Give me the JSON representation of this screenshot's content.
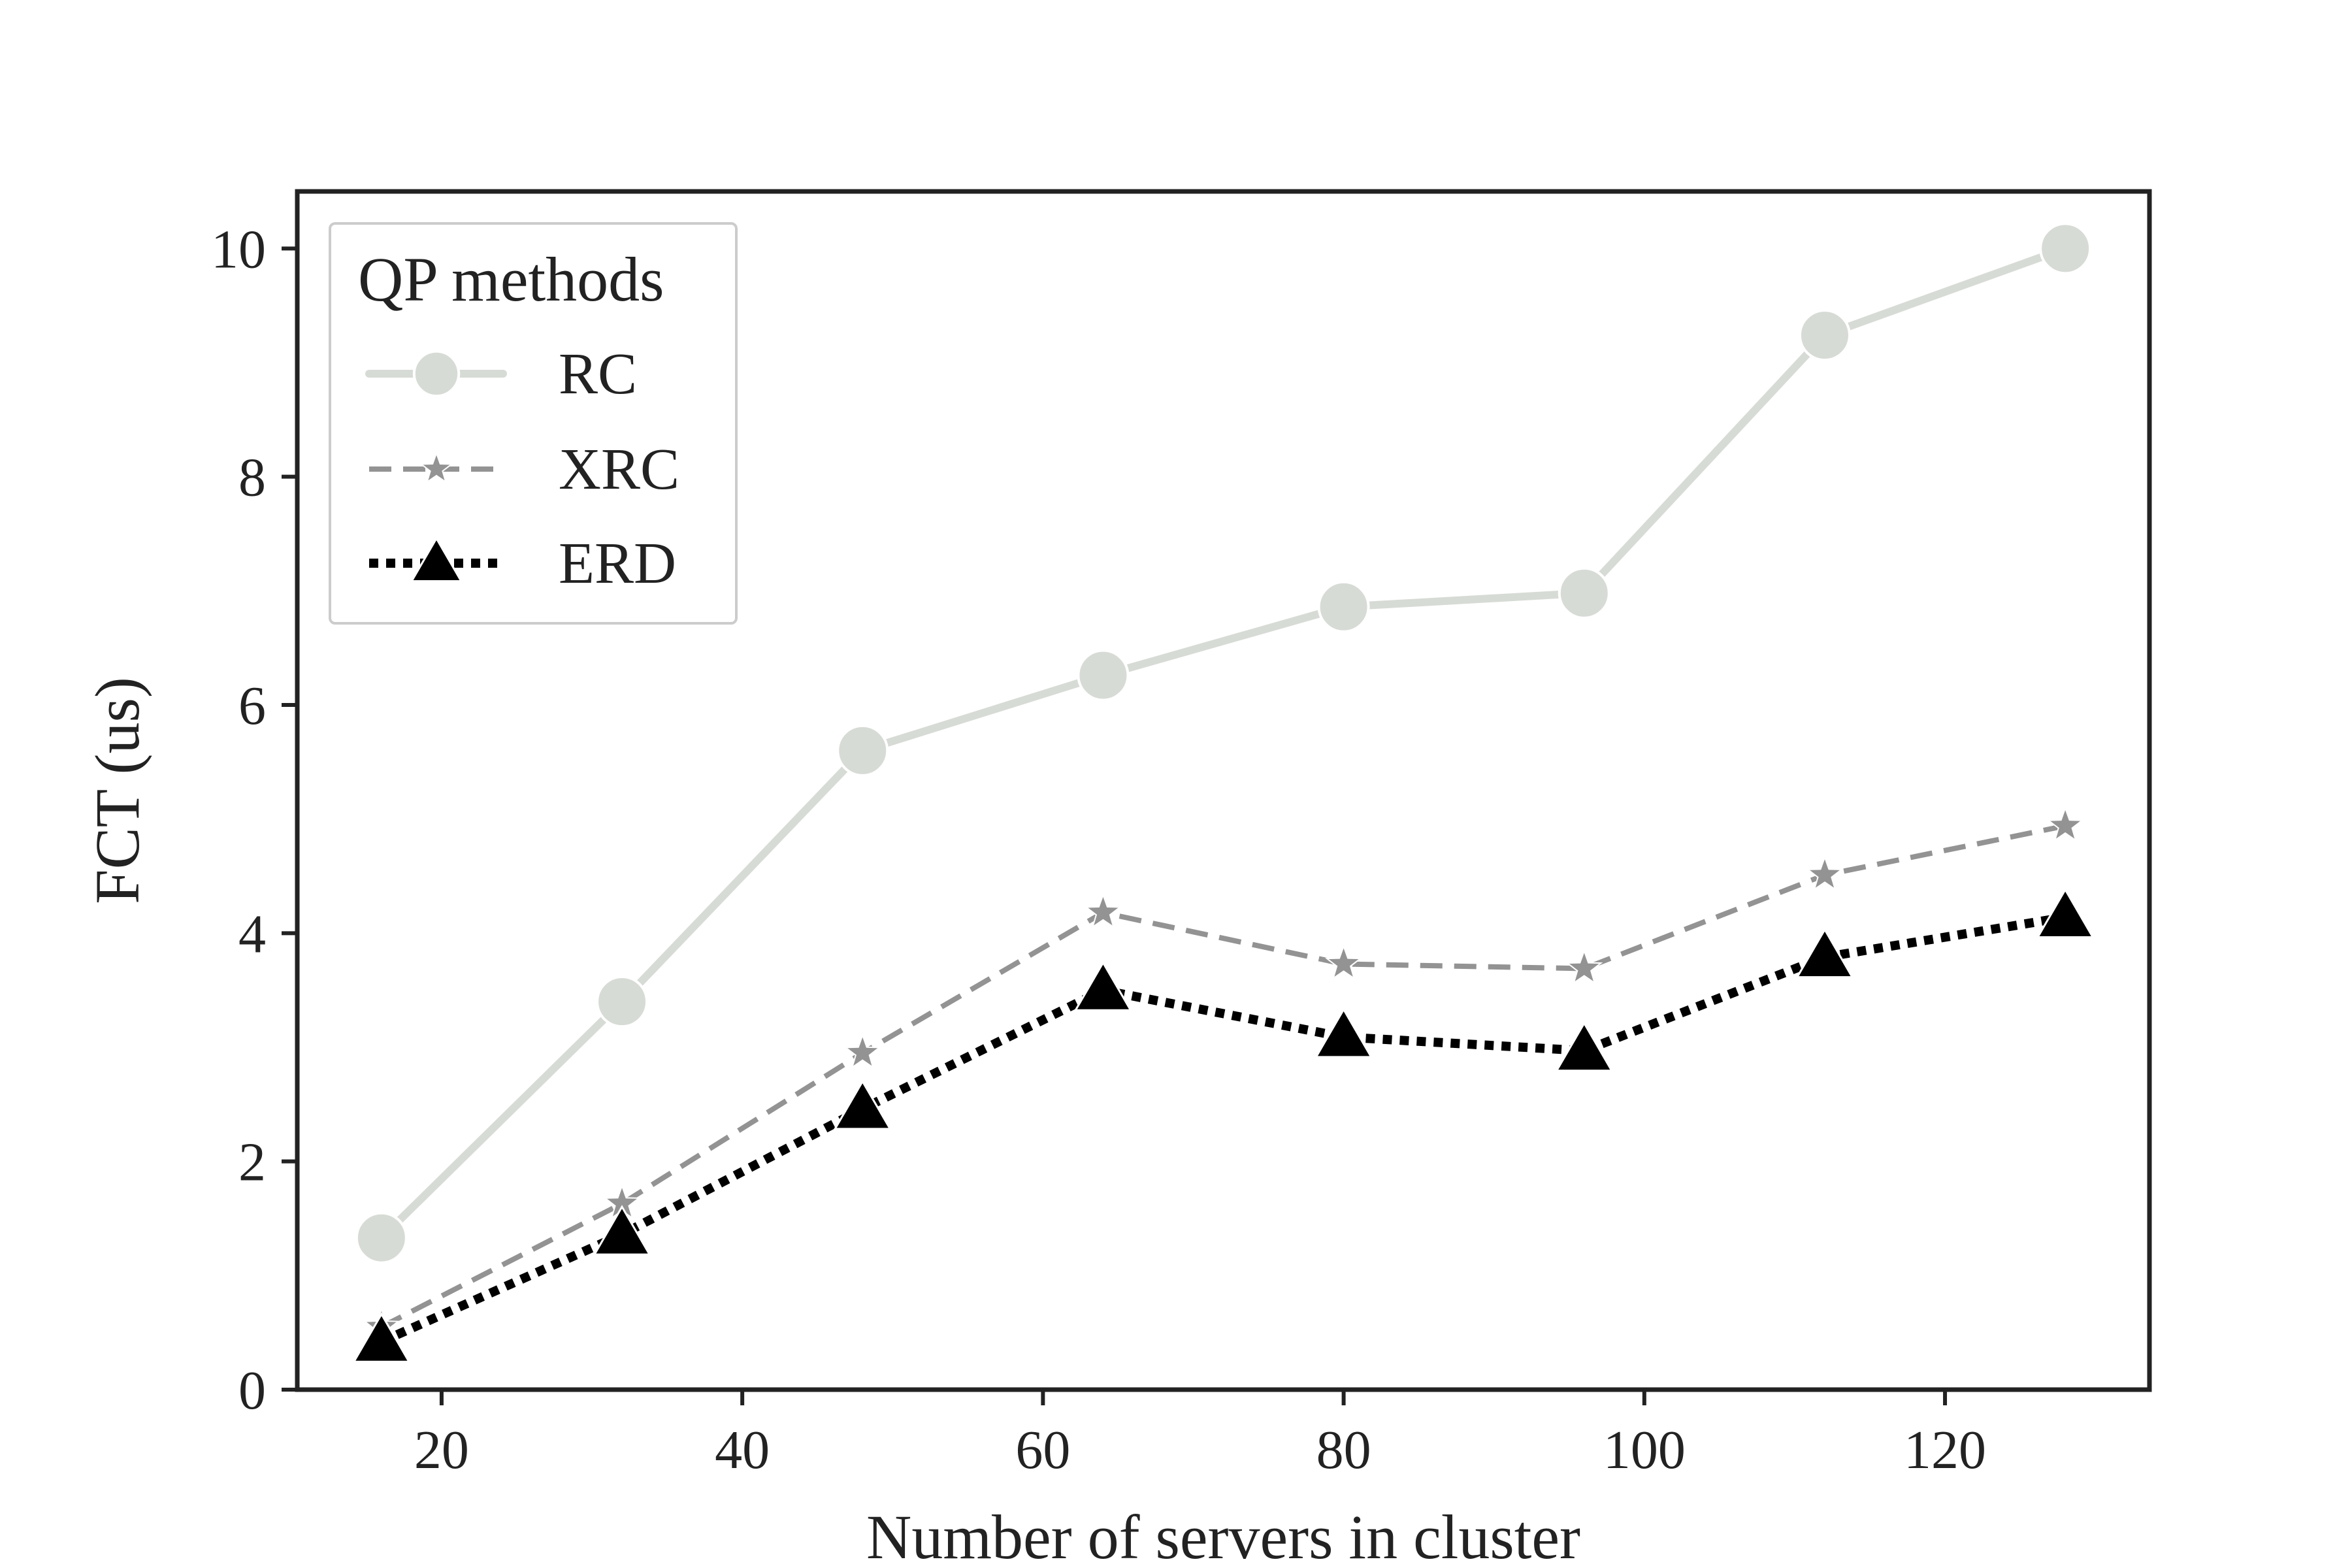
{
  "chart_data": {
    "type": "line",
    "title": "",
    "xlabel": "Number of servers in cluster",
    "ylabel": "FCT (us)",
    "xlim": [
      10.4,
      133.6
    ],
    "ylim": [
      0,
      10.5
    ],
    "xticks": [
      20,
      40,
      60,
      80,
      100,
      120
    ],
    "yticks": [
      0,
      2,
      4,
      6,
      8,
      10
    ],
    "grid": false,
    "legend": {
      "title": "QP methods",
      "placement": "top-left"
    },
    "x": [
      16,
      32,
      48,
      64,
      80,
      96,
      112,
      128
    ],
    "series": [
      {
        "name": "RC",
        "color": "#d7dbd5",
        "line": "solid",
        "marker": "circle",
        "values": [
          1.33,
          3.4,
          5.6,
          6.26,
          6.86,
          6.98,
          9.24,
          10.0
        ]
      },
      {
        "name": "XRC",
        "color": "#939393",
        "line": "dashed",
        "marker": "star",
        "values": [
          0.55,
          1.63,
          2.95,
          4.18,
          3.73,
          3.69,
          4.51,
          4.94
        ]
      },
      {
        "name": "ERD",
        "color": "#000000",
        "line": "dotted",
        "marker": "triangle",
        "values": [
          0.42,
          1.36,
          2.46,
          3.5,
          3.09,
          2.97,
          3.79,
          4.14
        ]
      }
    ]
  }
}
